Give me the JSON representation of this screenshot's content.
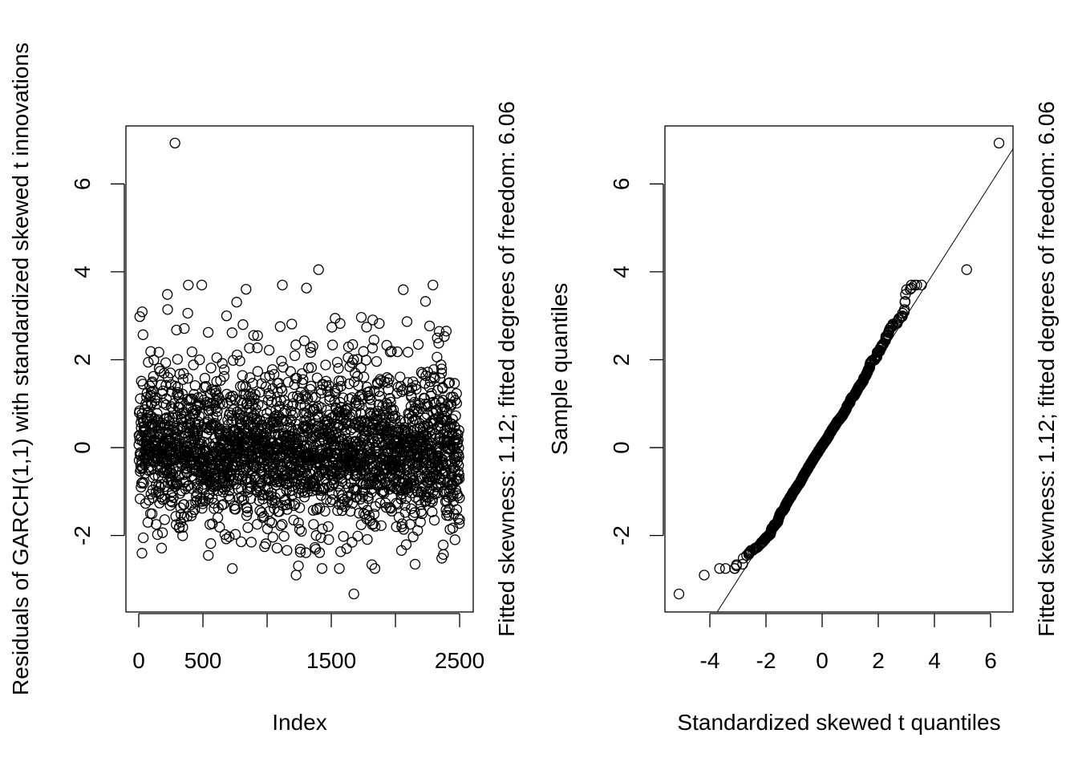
{
  "chart_data": [
    {
      "type": "scatter",
      "title": "",
      "xlabel": "Index",
      "ylabel": "Residuals of GARCH(1,1) with standardized skewed t innovations",
      "side_label": "Fitted skewness: 1.12; fitted degrees of freedom: 6.06",
      "xlim": [
        -100,
        2606
      ],
      "ylim": [
        -3.74,
        7.32
      ],
      "x_ticks": [
        0,
        500,
        1000,
        1500,
        2000,
        2500
      ],
      "x_tick_labels": [
        "0",
        "500",
        "",
        "1500",
        "",
        "2500"
      ],
      "y_ticks": [
        -2,
        0,
        2,
        4,
        6
      ],
      "y_tick_labels": [
        "-2",
        "0",
        "2",
        "4",
        "6"
      ],
      "grid": false,
      "n_points": 2500,
      "series_description": "standardized residuals, roughly mean 0, sd 1",
      "notable_points": [
        {
          "x": 281,
          "y": 6.93
        },
        {
          "x": 1400,
          "y": 4.05
        },
        {
          "x": 1675,
          "y": -3.33
        },
        {
          "x": 1225,
          "y": -2.9
        }
      ]
    },
    {
      "type": "scatter",
      "title": "",
      "xlabel": "Standardized skewed t quantiles",
      "ylabel": "Sample quantiles",
      "side_label": "Fitted skewness: 1.12; fitted degrees of freedom: 6.06",
      "xlim": [
        -5.6,
        6.8
      ],
      "ylim": [
        -3.74,
        7.32
      ],
      "x_ticks": [
        -4,
        -2,
        0,
        2,
        4,
        6
      ],
      "x_tick_labels": [
        "-4",
        "-2",
        "0",
        "2",
        "4",
        "6"
      ],
      "y_ticks": [
        -2,
        0,
        2,
        4,
        6
      ],
      "y_tick_labels": [
        "-2",
        "0",
        "2",
        "4",
        "6"
      ],
      "grid": false,
      "reference_line": {
        "intercept": 0.0,
        "slope": 1.0
      },
      "notable_points": [
        {
          "x": -5.1,
          "y": -3.33
        },
        {
          "x": -4.2,
          "y": -2.9
        },
        {
          "x": 5.15,
          "y": 4.05
        },
        {
          "x": 6.3,
          "y": 6.93
        }
      ]
    }
  ]
}
